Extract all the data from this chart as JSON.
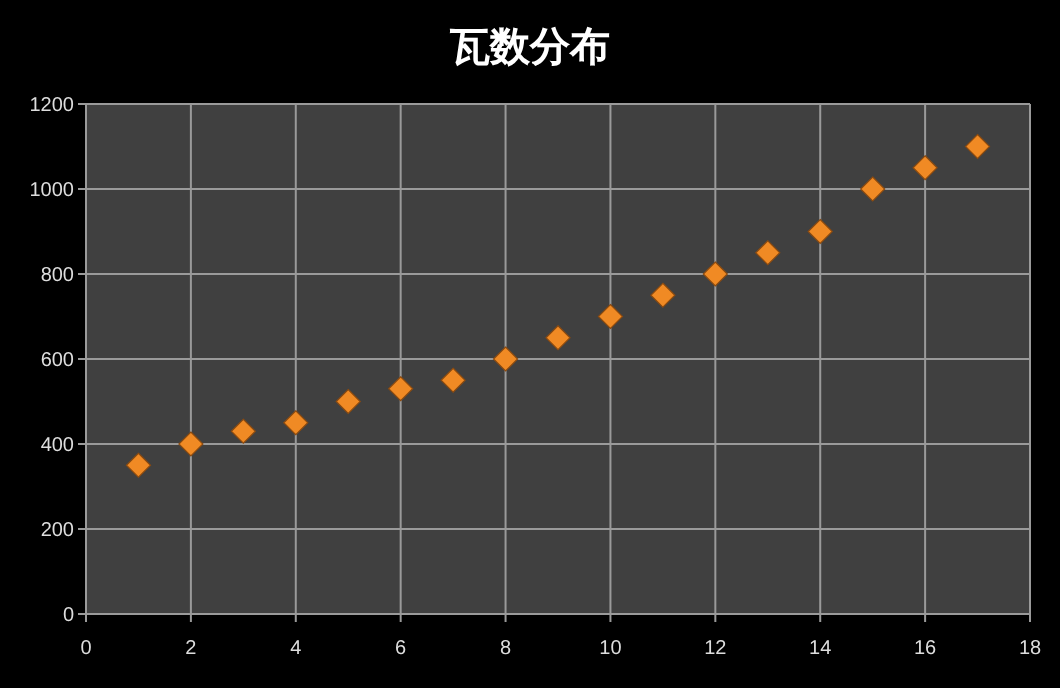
{
  "chart_data": {
    "type": "scatter",
    "title": "瓦数分布",
    "x": [
      1,
      2,
      3,
      4,
      5,
      6,
      7,
      8,
      9,
      10,
      11,
      12,
      13,
      14,
      15,
      16,
      17
    ],
    "values": [
      350,
      400,
      430,
      450,
      500,
      530,
      550,
      600,
      650,
      700,
      750,
      800,
      850,
      900,
      1000,
      1050,
      1100
    ],
    "color": "#f08a24",
    "marker": "diamond",
    "xlim": [
      0,
      18
    ],
    "xticks": [
      0,
      2,
      4,
      6,
      8,
      10,
      12,
      14,
      16,
      18
    ],
    "ylim": [
      0,
      1200
    ],
    "yticks": [
      0,
      200,
      400,
      600,
      800,
      1000,
      1200
    ],
    "grid": true
  }
}
